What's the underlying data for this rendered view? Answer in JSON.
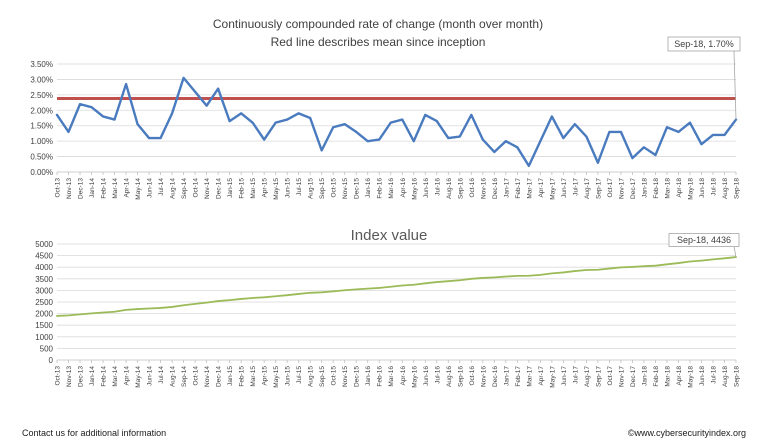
{
  "colors": {
    "rate_line": "#4a7bbf",
    "mean_line": "#c0504d",
    "index_line": "#9bbb59",
    "gridline": "#d9d9d9",
    "axis": "#bfbfbf"
  },
  "footer": {
    "left": "Contact us for additional information",
    "right": "©www.cybersecurityindex.org"
  },
  "chart_data": [
    {
      "type": "line",
      "title": "Continuously compounded rate of change (month over month)",
      "subtitle": "Red line describes mean since inception",
      "categories": [
        "Oct-13",
        "Nov-13",
        "Dec-13",
        "Jan-14",
        "Feb-14",
        "Mar-14",
        "Apr-14",
        "May-14",
        "Jun-14",
        "Jul-14",
        "Aug-14",
        "Sep-14",
        "Oct-14",
        "Nov-14",
        "Dec-14",
        "Jan-15",
        "Feb-15",
        "Mar-15",
        "Apr-15",
        "May-15",
        "Jun-15",
        "Jul-15",
        "Aug-15",
        "Sep-15",
        "Oct-15",
        "Nov-15",
        "Dec-15",
        "Jan-16",
        "Feb-16",
        "Mar-16",
        "Apr-16",
        "May-16",
        "Jun-16",
        "Jul-16",
        "Aug-16",
        "Sep-16",
        "Oct-16",
        "Nov-16",
        "Dec-16",
        "Jan-17",
        "Feb-17",
        "Mar-17",
        "Apr-17",
        "May-17",
        "Jun-17",
        "Jul-17",
        "Aug-17",
        "Sep-17",
        "Oct-17",
        "Nov-17",
        "Dec-17",
        "Jan-18",
        "Feb-18",
        "Mar-18",
        "Apr-18",
        "May-18",
        "Jun-18",
        "Jul-18",
        "Aug-18",
        "Sep-18"
      ],
      "series": [
        {
          "values": [
            1.85,
            1.3,
            2.2,
            2.1,
            1.8,
            1.7,
            2.85,
            1.55,
            1.1,
            1.1,
            1.9,
            3.05,
            2.6,
            2.15,
            2.7,
            1.65,
            1.9,
            1.6,
            1.05,
            1.6,
            1.7,
            1.9,
            1.75,
            0.7,
            1.45,
            1.55,
            1.3,
            1.0,
            1.05,
            1.6,
            1.7,
            1.0,
            1.85,
            1.65,
            1.1,
            1.15,
            1.85,
            1.05,
            0.65,
            1.0,
            0.8,
            0.2,
            1.0,
            1.8,
            1.1,
            1.55,
            1.15,
            0.3,
            1.3,
            1.3,
            0.45,
            0.8,
            0.55,
            1.45,
            1.3,
            1.6,
            0.9,
            1.2,
            1.2,
            1.7
          ]
        }
      ],
      "mean_line": 2.38,
      "y_ticks": [
        "0.00%",
        "0.50%",
        "1.00%",
        "1.50%",
        "2.00%",
        "2.50%",
        "3.00%",
        "3.50%"
      ],
      "ylim": [
        0,
        3.5
      ],
      "callout": "Sep-18, 1.70%",
      "grid": true
    },
    {
      "type": "line",
      "title": "Index value",
      "categories": [
        "Oct-13",
        "Nov-13",
        "Dec-13",
        "Jan-14",
        "Feb-14",
        "Mar-14",
        "Apr-14",
        "May-14",
        "Jun-14",
        "Jul-14",
        "Aug-14",
        "Sep-14",
        "Oct-14",
        "Nov-14",
        "Dec-14",
        "Jan-15",
        "Feb-15",
        "Mar-15",
        "Apr-15",
        "May-15",
        "Jun-15",
        "Jul-15",
        "Aug-15",
        "Sep-15",
        "Oct-15",
        "Nov-15",
        "Dec-15",
        "Jan-16",
        "Feb-16",
        "Mar-16",
        "Apr-16",
        "May-16",
        "Jun-16",
        "Jul-16",
        "Aug-16",
        "Sep-16",
        "Oct-16",
        "Nov-16",
        "Dec-16",
        "Jan-17",
        "Feb-17",
        "Mar-17",
        "Apr-17",
        "May-17",
        "Jun-17",
        "Jul-17",
        "Aug-17",
        "Sep-17",
        "Oct-17",
        "Nov-17",
        "Dec-17",
        "Jan-18",
        "Feb-18",
        "Mar-18",
        "Apr-18",
        "May-18",
        "Jun-18",
        "Jul-18",
        "Aug-18",
        "Sep-18"
      ],
      "series": [
        {
          "values": [
            1900,
            1925,
            1967,
            2009,
            2047,
            2081,
            2161,
            2195,
            2219,
            2244,
            2287,
            2358,
            2420,
            2472,
            2540,
            2582,
            2632,
            2674,
            2702,
            2746,
            2793,
            2847,
            2897,
            2917,
            2959,
            3005,
            3045,
            3075,
            3107,
            3157,
            3211,
            3244,
            3305,
            3360,
            3397,
            3436,
            3500,
            3537,
            3560,
            3596,
            3625,
            3632,
            3668,
            3734,
            3775,
            3834,
            3878,
            3890,
            3941,
            3993,
            4011,
            4043,
            4065,
            4125,
            4179,
            4246,
            4284,
            4336,
            4383,
            4436
          ]
        }
      ],
      "y_ticks": [
        "0",
        "500",
        "1000",
        "1500",
        "2000",
        "2500",
        "3000",
        "3500",
        "4000",
        "4500",
        "5000"
      ],
      "ylim": [
        0,
        5000
      ],
      "callout": "Sep-18, 4436",
      "grid": true
    }
  ]
}
